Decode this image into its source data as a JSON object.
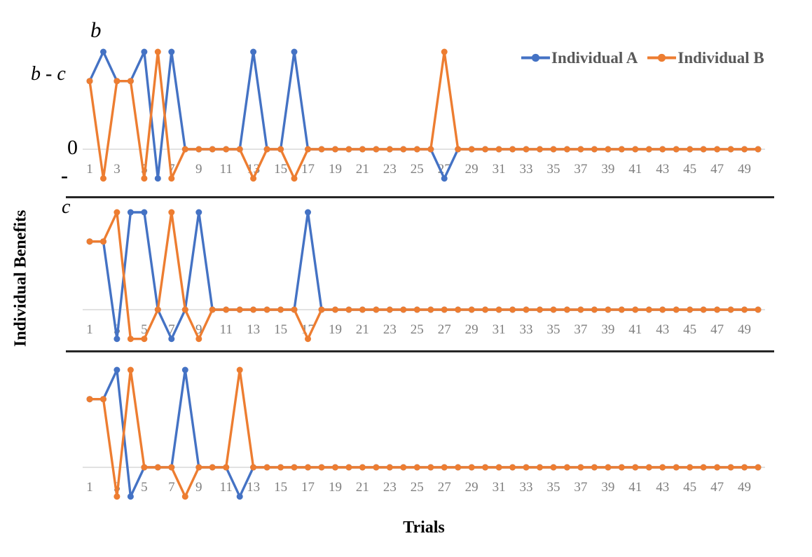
{
  "figure": {
    "y_axis_title": "Individual Benefits",
    "x_axis_title": "Trials",
    "y_tick_labels": {
      "b": "b",
      "b_minus_c": "b - c",
      "zero": "0",
      "minus": "-",
      "c": "c"
    },
    "legend": {
      "items": [
        {
          "label": "Individual A",
          "color": "#4472C4"
        },
        {
          "label": "Individual B",
          "color": "#ED7D31"
        }
      ]
    },
    "colors": {
      "individual_a": "#4472C4",
      "individual_b": "#ED7D31",
      "tick_text": "#808080",
      "legend_text": "#595959",
      "zero_gridline": "#D9D9D9",
      "panel_divider": "#262626"
    }
  },
  "chart_data": {
    "type": "line",
    "x_axis": "Trials",
    "x_range": [
      1,
      50
    ],
    "x_ticks": [
      1,
      3,
      5,
      7,
      9,
      11,
      13,
      15,
      17,
      19,
      21,
      23,
      25,
      27,
      29,
      31,
      33,
      35,
      37,
      39,
      41,
      43,
      45,
      47,
      49
    ],
    "y_levels": {
      "b": 1,
      "b-c": 0.7,
      "0": 0,
      "-c": -0.3
    },
    "legend_position": "top-right",
    "grid": "zero-line-only",
    "panels": [
      {
        "panel": "top",
        "series": [
          {
            "name": "Individual A",
            "values": [
              "b-c",
              "b",
              "b-c",
              "b-c",
              "b",
              "-c",
              "b",
              "0",
              "0",
              "0",
              "0",
              "0",
              "b",
              "0",
              "0",
              "b",
              "0",
              "0",
              "0",
              "0",
              "0",
              "0",
              "0",
              "0",
              "0",
              "0",
              "-c",
              "0",
              "0",
              "0",
              "0",
              "0",
              "0",
              "0",
              "0",
              "0",
              "0",
              "0",
              "0",
              "0",
              "0",
              "0",
              "0",
              "0",
              "0",
              "0",
              "0",
              "0",
              "0",
              "0"
            ]
          },
          {
            "name": "Individual B",
            "values": [
              "b-c",
              "-c",
              "b-c",
              "b-c",
              "-c",
              "b",
              "-c",
              "0",
              "0",
              "0",
              "0",
              "0",
              "-c",
              "0",
              "0",
              "-c",
              "0",
              "0",
              "0",
              "0",
              "0",
              "0",
              "0",
              "0",
              "0",
              "0",
              "b",
              "0",
              "0",
              "0",
              "0",
              "0",
              "0",
              "0",
              "0",
              "0",
              "0",
              "0",
              "0",
              "0",
              "0",
              "0",
              "0",
              "0",
              "0",
              "0",
              "0",
              "0",
              "0",
              "0"
            ]
          }
        ]
      },
      {
        "panel": "middle",
        "series": [
          {
            "name": "Individual A",
            "values": [
              "b-c",
              "b-c",
              "-c",
              "b",
              "b",
              "0",
              "-c",
              "0",
              "b",
              "0",
              "0",
              "0",
              "0",
              "0",
              "0",
              "0",
              "b",
              "0",
              "0",
              "0",
              "0",
              "0",
              "0",
              "0",
              "0",
              "0",
              "0",
              "0",
              "0",
              "0",
              "0",
              "0",
              "0",
              "0",
              "0",
              "0",
              "0",
              "0",
              "0",
              "0",
              "0",
              "0",
              "0",
              "0",
              "0",
              "0",
              "0",
              "0",
              "0",
              "0"
            ]
          },
          {
            "name": "Individual B",
            "values": [
              "b-c",
              "b-c",
              "b",
              "-c",
              "-c",
              "0",
              "b",
              "0",
              "-c",
              "0",
              "0",
              "0",
              "0",
              "0",
              "0",
              "0",
              "-c",
              "0",
              "0",
              "0",
              "0",
              "0",
              "0",
              "0",
              "0",
              "0",
              "0",
              "0",
              "0",
              "0",
              "0",
              "0",
              "0",
              "0",
              "0",
              "0",
              "0",
              "0",
              "0",
              "0",
              "0",
              "0",
              "0",
              "0",
              "0",
              "0",
              "0",
              "0",
              "0",
              "0"
            ]
          }
        ]
      },
      {
        "panel": "bottom",
        "series": [
          {
            "name": "Individual A",
            "values": [
              "b-c",
              "b-c",
              "b",
              "-c",
              "0",
              "0",
              "0",
              "b",
              "0",
              "0",
              "0",
              "-c",
              "0",
              "0",
              "0",
              "0",
              "0",
              "0",
              "0",
              "0",
              "0",
              "0",
              "0",
              "0",
              "0",
              "0",
              "0",
              "0",
              "0",
              "0",
              "0",
              "0",
              "0",
              "0",
              "0",
              "0",
              "0",
              "0",
              "0",
              "0",
              "0",
              "0",
              "0",
              "0",
              "0",
              "0",
              "0",
              "0",
              "0",
              "0"
            ]
          },
          {
            "name": "Individual B",
            "values": [
              "b-c",
              "b-c",
              "-c",
              "b",
              "0",
              "0",
              "0",
              "-c",
              "0",
              "0",
              "0",
              "b",
              "0",
              "0",
              "0",
              "0",
              "0",
              "0",
              "0",
              "0",
              "0",
              "0",
              "0",
              "0",
              "0",
              "0",
              "0",
              "0",
              "0",
              "0",
              "0",
              "0",
              "0",
              "0",
              "0",
              "0",
              "0",
              "0",
              "0",
              "0",
              "0",
              "0",
              "0",
              "0",
              "0",
              "0",
              "0",
              "0",
              "0",
              "0"
            ]
          }
        ]
      }
    ]
  }
}
